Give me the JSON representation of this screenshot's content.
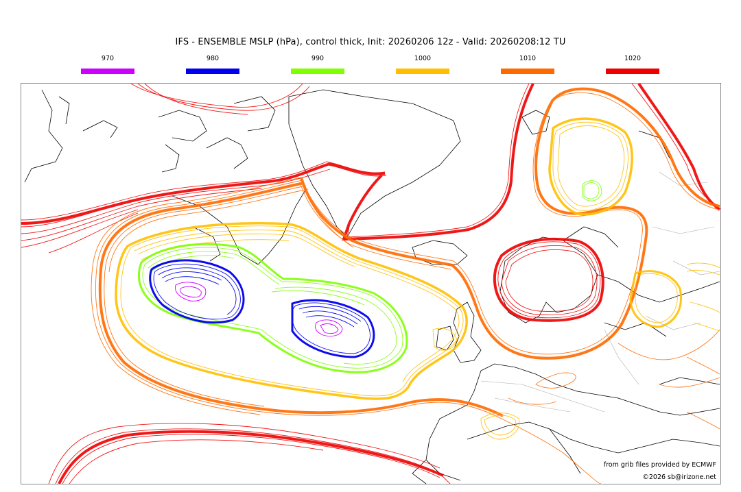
{
  "title": "IFS - ENSEMBLE MSLP (hPa), control thick, Init: 20260206 12z - Valid: 20260208:12 TU",
  "legend": [
    {
      "label": "970",
      "color": "#cc00ff"
    },
    {
      "label": "980",
      "color": "#0000ee"
    },
    {
      "label": "990",
      "color": "#7fff00"
    },
    {
      "label": "1000",
      "color": "#ffbf00"
    },
    {
      "label": "1010",
      "color": "#ff6a00"
    },
    {
      "label": "1020",
      "color": "#ee0000"
    }
  ],
  "credits": {
    "line1": "from grib files provided by ECMWF",
    "line2": "©2026 sb@irizone.net"
  },
  "colors": {
    "coast": "#000000",
    "borders": "#999999",
    "frame": "#888888"
  }
}
